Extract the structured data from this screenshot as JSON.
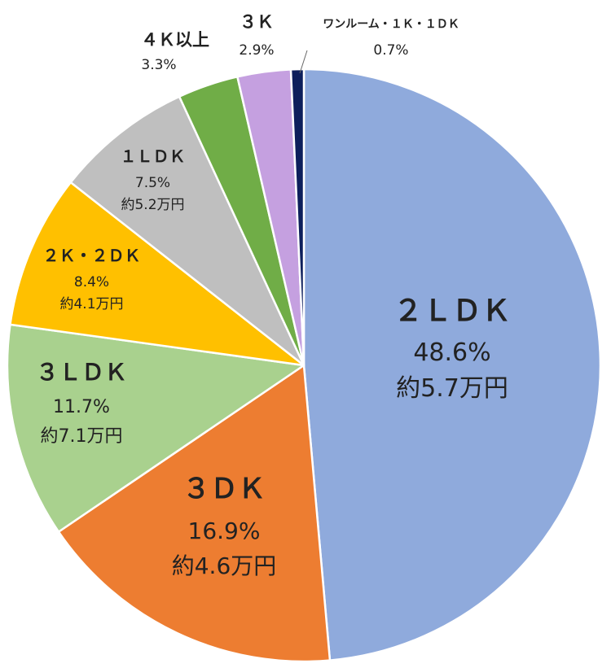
{
  "chart_data": {
    "type": "pie",
    "title": "",
    "colors": {
      "2LDK": "#8faadc",
      "3DK": "#ed7d31",
      "3LDK": "#a9d18e",
      "2K2DK": "#ffc000",
      "1LDK": "#bfbfbf",
      "4K": "#70ad47",
      "3K": "#c5a0e0",
      "1R": "#0d1f5c"
    },
    "slices": [
      {
        "category": "２ＬＤＫ",
        "percent": 48.6,
        "percent_label": "48.6%",
        "rent_label": "約5.7万円"
      },
      {
        "category": "３ＤＫ",
        "percent": 16.9,
        "percent_label": "16.9%",
        "rent_label": "約4.6万円"
      },
      {
        "category": "３ＬＤＫ",
        "percent": 11.7,
        "percent_label": "11.7%",
        "rent_label": "約7.1万円"
      },
      {
        "category": "２Ｋ・２ＤＫ",
        "percent": 8.4,
        "percent_label": "8.4%",
        "rent_label": "約4.1万円"
      },
      {
        "category": "１ＬＤＫ",
        "percent": 7.5,
        "percent_label": "7.5%",
        "rent_label": "約5.2万円"
      },
      {
        "category": "４Ｋ以上",
        "percent": 3.3,
        "percent_label": "3.3%",
        "rent_label": ""
      },
      {
        "category": "３Ｋ",
        "percent": 2.9,
        "percent_label": "2.9%",
        "rent_label": ""
      },
      {
        "category": "ワンルーム・１Ｋ・１ＤＫ",
        "percent": 0.7,
        "percent_label": "0.7%",
        "rent_label": ""
      }
    ]
  }
}
